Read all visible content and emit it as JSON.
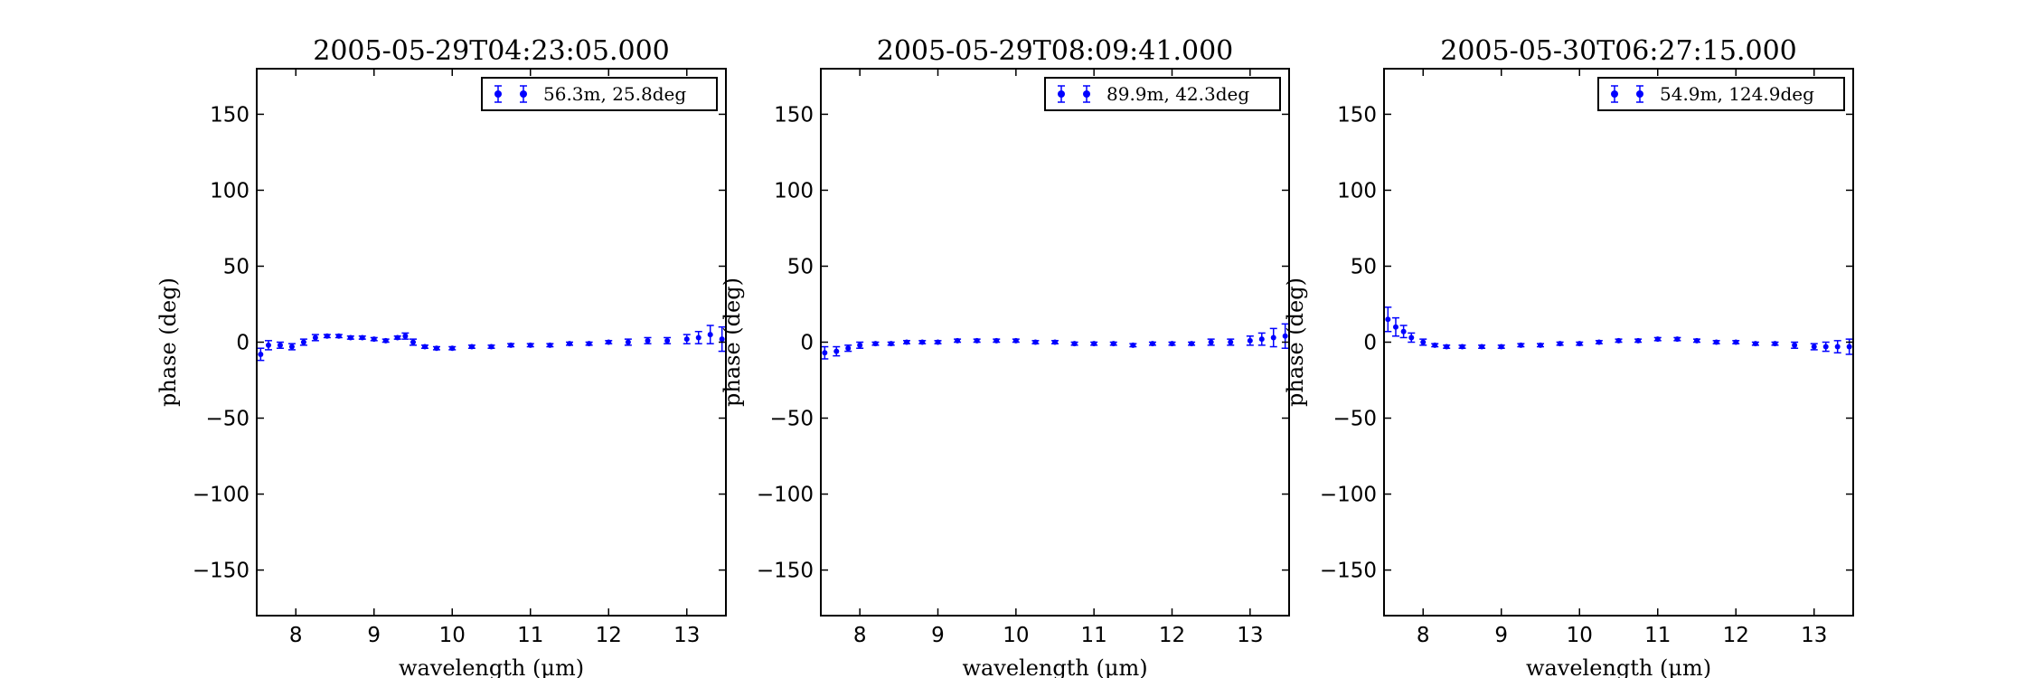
{
  "colors": {
    "series": "#0000ff",
    "axes": "#000000",
    "background": "#ffffff"
  },
  "chart_data": [
    {
      "type": "scatter",
      "title": "2005-05-29T04:23:05.000",
      "xlabel": "wavelength (μm)",
      "ylabel": "phase (deg)",
      "xlim": [
        7.5,
        13.5
      ],
      "ylim": [
        -180,
        180
      ],
      "xticks": [
        8,
        9,
        10,
        11,
        12,
        13
      ],
      "yticks": [
        -150,
        -100,
        -50,
        0,
        50,
        100,
        150
      ],
      "grid": false,
      "legend_position": "top-right",
      "series": [
        {
          "name": "56.3m, 25.8deg",
          "marker": "errorbar-point",
          "x": [
            7.55,
            7.65,
            7.8,
            7.95,
            8.1,
            8.25,
            8.4,
            8.55,
            8.7,
            8.85,
            9.0,
            9.15,
            9.3,
            9.4,
            9.5,
            9.65,
            9.8,
            10.0,
            10.25,
            10.5,
            10.75,
            11.0,
            11.25,
            11.5,
            11.75,
            12.0,
            12.25,
            12.5,
            12.75,
            13.0,
            13.15,
            13.3,
            13.45
          ],
          "y": [
            -8,
            -2,
            -2,
            -3,
            0,
            3,
            4,
            4,
            3,
            3,
            2,
            1,
            3,
            4,
            0,
            -3,
            -4,
            -4,
            -3,
            -3,
            -2,
            -2,
            -2,
            -1,
            -1,
            0,
            0,
            1,
            1,
            2,
            3,
            5,
            2
          ],
          "err": [
            4,
            3,
            2,
            2,
            2,
            2,
            1,
            1,
            1,
            1,
            1,
            1,
            1,
            2,
            2,
            1,
            1,
            1,
            1,
            1,
            1,
            1,
            1,
            1,
            1,
            1,
            2,
            2,
            2,
            3,
            4,
            6,
            8
          ]
        }
      ]
    },
    {
      "type": "scatter",
      "title": "2005-05-29T08:09:41.000",
      "xlabel": "wavelength (μm)",
      "ylabel": "phase (deg)",
      "xlim": [
        7.5,
        13.5
      ],
      "ylim": [
        -180,
        180
      ],
      "xticks": [
        8,
        9,
        10,
        11,
        12,
        13
      ],
      "yticks": [
        -150,
        -100,
        -50,
        0,
        50,
        100,
        150
      ],
      "grid": false,
      "legend_position": "top-right",
      "series": [
        {
          "name": "89.9m, 42.3deg",
          "marker": "errorbar-point",
          "x": [
            7.55,
            7.7,
            7.85,
            8.0,
            8.2,
            8.4,
            8.6,
            8.8,
            9.0,
            9.25,
            9.5,
            9.75,
            10.0,
            10.25,
            10.5,
            10.75,
            11.0,
            11.25,
            11.5,
            11.75,
            12.0,
            12.25,
            12.5,
            12.75,
            13.0,
            13.15,
            13.3,
            13.45
          ],
          "y": [
            -7,
            -6,
            -4,
            -2,
            -1,
            -1,
            0,
            0,
            0,
            1,
            1,
            1,
            1,
            0,
            0,
            -1,
            -1,
            -1,
            -2,
            -1,
            -1,
            -1,
            0,
            0,
            1,
            2,
            3,
            4
          ],
          "err": [
            4,
            3,
            2,
            2,
            1,
            1,
            1,
            1,
            1,
            1,
            1,
            1,
            1,
            1,
            1,
            1,
            1,
            1,
            1,
            1,
            1,
            1,
            2,
            2,
            3,
            4,
            6,
            8
          ]
        }
      ]
    },
    {
      "type": "scatter",
      "title": "2005-05-30T06:27:15.000",
      "xlabel": "wavelength (μm)",
      "ylabel": "phase (deg)",
      "xlim": [
        7.5,
        13.5
      ],
      "ylim": [
        -180,
        180
      ],
      "xticks": [
        8,
        9,
        10,
        11,
        12,
        13
      ],
      "yticks": [
        -150,
        -100,
        -50,
        0,
        50,
        100,
        150
      ],
      "grid": false,
      "legend_position": "top-right",
      "series": [
        {
          "name": "54.9m, 124.9deg",
          "marker": "errorbar-point",
          "x": [
            7.55,
            7.65,
            7.75,
            7.85,
            8.0,
            8.15,
            8.3,
            8.5,
            8.75,
            9.0,
            9.25,
            9.5,
            9.75,
            10.0,
            10.25,
            10.5,
            10.75,
            11.0,
            11.25,
            11.5,
            11.75,
            12.0,
            12.25,
            12.5,
            12.75,
            13.0,
            13.15,
            13.3,
            13.45
          ],
          "y": [
            15,
            10,
            7,
            3,
            0,
            -2,
            -3,
            -3,
            -3,
            -3,
            -2,
            -2,
            -1,
            -1,
            0,
            1,
            1,
            2,
            2,
            1,
            0,
            0,
            -1,
            -1,
            -2,
            -3,
            -3,
            -3,
            -3
          ],
          "err": [
            8,
            6,
            4,
            3,
            2,
            1,
            1,
            1,
            1,
            1,
            1,
            1,
            1,
            1,
            1,
            1,
            1,
            1,
            1,
            1,
            1,
            1,
            1,
            1,
            2,
            2,
            3,
            4,
            5
          ]
        }
      ]
    }
  ]
}
